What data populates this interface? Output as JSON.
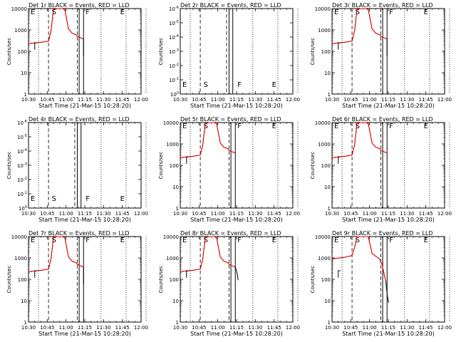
{
  "chart_data": [
    {
      "type": "line",
      "title": "Det 1r BLACK = Events, RED = LLD",
      "xlabel": "Start Time (21-Mar-15 10:28:20)",
      "ylabel": "Counts/sec",
      "x_ticks": [
        "10:30",
        "10:45",
        "11:00",
        "11:15",
        "11:30",
        "11:45",
        "12:00"
      ],
      "y_ticks": [
        "1",
        "10",
        "100",
        "1000",
        "10000"
      ],
      "ylim": [
        1,
        10000
      ],
      "yscale": "log",
      "markers": [
        "E",
        "S",
        "F",
        "E"
      ],
      "has_data": true,
      "ending": "drop"
    },
    {
      "type": "line",
      "title": "Det 2r BLACK = Events, RED = LLD",
      "xlabel": "Start Time (21-Mar-15 10:28:20)",
      "ylabel": "Counts/sec",
      "x_ticks": [
        "10:30",
        "10:45",
        "11:00",
        "11:15",
        "11:30",
        "11:45",
        "12:00"
      ],
      "y_ticks": [
        "10^0",
        "10^-1",
        "10^-2",
        "10^-3",
        "10^-4",
        "10^-5",
        "10^-6"
      ],
      "ylim": [
        1,
        1e-06
      ],
      "yscale": "log",
      "markers": [
        "E",
        "S",
        "F",
        "E"
      ],
      "has_data": false
    },
    {
      "type": "line",
      "title": "Det 3r BLACK = Events, RED = LLD",
      "xlabel": "Start Time (21-Mar-15 10:28:20)",
      "ylabel": "Counts/sec",
      "x_ticks": [
        "10:30",
        "10:45",
        "11:00",
        "11:15",
        "11:30",
        "11:45",
        "12:00"
      ],
      "y_ticks": [
        "1",
        "10",
        "100",
        "1000",
        "10000"
      ],
      "ylim": [
        1,
        10000
      ],
      "yscale": "log",
      "markers": [
        "E",
        "S",
        "F",
        "E"
      ],
      "has_data": true,
      "ending": "drop"
    },
    {
      "type": "line",
      "title": "Det 4r BLACK = Events, RED = LLD",
      "xlabel": "Start Time (21-Mar-15 10:28:20)",
      "ylabel": "Counts/sec",
      "x_ticks": [
        "10:30",
        "10:45",
        "11:00",
        "11:15",
        "11:30",
        "11:45",
        "12:00"
      ],
      "y_ticks": [
        "10^0",
        "10^-1",
        "10^-2",
        "10^-3",
        "10^-4",
        "10^-5",
        "10^-6"
      ],
      "ylim": [
        1,
        1e-06
      ],
      "yscale": "log",
      "markers": [
        "E",
        "S",
        "F",
        "E"
      ],
      "has_data": false
    },
    {
      "type": "line",
      "title": "Det 5r BLACK = Events, RED = LLD",
      "xlabel": "Start Time (21-Mar-15 10:28:20)",
      "ylabel": "Counts/sec",
      "x_ticks": [
        "10:30",
        "10:45",
        "11:00",
        "11:15",
        "11:30",
        "11:45",
        "12:00"
      ],
      "y_ticks": [
        "1",
        "10",
        "100",
        "1000",
        "10000"
      ],
      "ylim": [
        1,
        10000
      ],
      "yscale": "log",
      "markers": [
        "E",
        "S",
        "F",
        "E"
      ],
      "has_data": true,
      "ending": "flat"
    },
    {
      "type": "line",
      "title": "Det 6r BLACK = Events, RED = LLD",
      "xlabel": "Start Time (21-Mar-15 10:28:20)",
      "ylabel": "Counts/sec",
      "x_ticks": [
        "10:30",
        "10:45",
        "11:00",
        "11:15",
        "11:30",
        "11:45",
        "12:00"
      ],
      "y_ticks": [
        "1",
        "10",
        "100",
        "1000",
        "10000"
      ],
      "ylim": [
        1,
        10000
      ],
      "yscale": "log",
      "markers": [
        "E",
        "S",
        "F",
        "E"
      ],
      "has_data": true,
      "ending": "flat"
    },
    {
      "type": "line",
      "title": "Det 7r BLACK = Events, RED = LLD",
      "xlabel": "Start Time (21-Mar-15 10:28:20)",
      "ylabel": "Counts/sec",
      "x_ticks": [
        "10:30",
        "10:45",
        "11:00",
        "11:15",
        "11:30",
        "11:45",
        "12:00"
      ],
      "y_ticks": [
        "1",
        "10",
        "100",
        "1000",
        "10000"
      ],
      "ylim": [
        1,
        10000
      ],
      "yscale": "log",
      "markers": [
        "E",
        "S",
        "F",
        "E"
      ],
      "has_data": true,
      "ending": "drop"
    },
    {
      "type": "line",
      "title": "Det 8r BLACK = Events, RED = LLD",
      "xlabel": "Start Time (21-Mar-15 10:28:20)",
      "ylabel": "Counts/sec",
      "x_ticks": [
        "10:30",
        "10:45",
        "11:00",
        "11:15",
        "11:30",
        "11:45",
        "12:00"
      ],
      "y_ticks": [
        "1",
        "10",
        "100",
        "1000",
        "10000"
      ],
      "ylim": [
        1,
        10000
      ],
      "yscale": "log",
      "markers": [
        "E",
        "S",
        "F",
        "E"
      ],
      "has_data": true,
      "ending": "tail"
    },
    {
      "type": "line",
      "title": "Det 9r BLACK = Events, RED = LLD",
      "xlabel": "Start Time (21-Mar-15 10:28:20)",
      "ylabel": "Counts/sec",
      "x_ticks": [
        "10:30",
        "10:45",
        "11:00",
        "11:15",
        "11:30",
        "11:45",
        "12:00"
      ],
      "y_ticks": [
        "1",
        "10",
        "100",
        "1000",
        "10000"
      ],
      "ylim": [
        1,
        10000
      ],
      "yscale": "log",
      "markers": [
        "E",
        "S",
        "F",
        "E"
      ],
      "has_data": true,
      "ending": "decay"
    }
  ],
  "colors": {
    "events": "#000000",
    "lld": "#ff0000"
  }
}
